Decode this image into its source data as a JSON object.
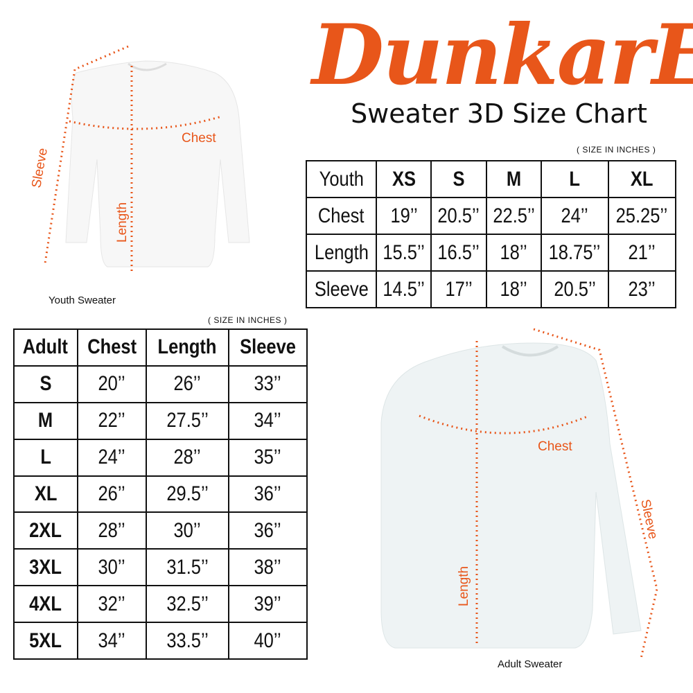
{
  "brand": "DunkarE",
  "title": "Sweater 3D Size Chart",
  "colors": {
    "accent": "#e8561a",
    "watermark": "#f5c8b0"
  },
  "youth": {
    "note": "( SIZE IN INCHES )",
    "label": "Youth Sweater",
    "measure_labels": {
      "chest": "Chest",
      "length": "Length",
      "sleeve": "Sleeve"
    },
    "header": [
      "Youth",
      "XS",
      "S",
      "M",
      "L",
      "XL"
    ],
    "rows": [
      [
        "Chest",
        "19’’",
        "20.5’’",
        "22.5’’",
        "24’’",
        "25.25’’"
      ],
      [
        "Length",
        "15.5’’",
        "16.5’’",
        "18’’",
        "18.75’’",
        "21’’"
      ],
      [
        "Sleeve",
        "14.5’’",
        "17’’",
        "18’’",
        "20.5’’",
        "23’’"
      ]
    ]
  },
  "adult": {
    "note": "( SIZE IN INCHES )",
    "label": "Adult Sweater",
    "measure_labels": {
      "chest": "Chest",
      "length": "Length",
      "sleeve": "Sleeve"
    },
    "header": [
      "Adult",
      "Chest",
      "Length",
      "Sleeve"
    ],
    "rows": [
      [
        "S",
        "20’’",
        "26’’",
        "33’’"
      ],
      [
        "M",
        "22’’",
        "27.5’’",
        "34’’"
      ],
      [
        "L",
        "24’’",
        "28’’",
        "35’’"
      ],
      [
        "XL",
        "26’’",
        "29.5’’",
        "36’’"
      ],
      [
        "2XL",
        "28’’",
        "30’’",
        "36’’"
      ],
      [
        "3XL",
        "30’’",
        "31.5’’",
        "38’’"
      ],
      [
        "4XL",
        "32’’",
        "32.5’’",
        "39’’"
      ],
      [
        "5XL",
        "34’’",
        "33.5’’",
        "40’’"
      ]
    ]
  }
}
